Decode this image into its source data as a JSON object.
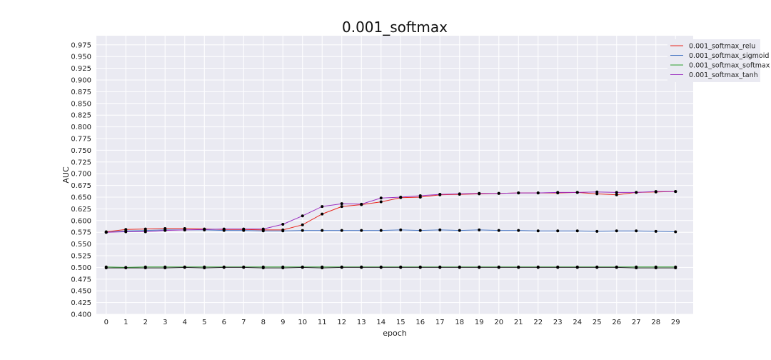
{
  "chart_data": {
    "type": "line",
    "title": "0.001_softmax",
    "xlabel": "epoch",
    "ylabel": "AUC",
    "x": [
      0,
      1,
      2,
      3,
      4,
      5,
      6,
      7,
      8,
      9,
      10,
      11,
      12,
      13,
      14,
      15,
      16,
      17,
      18,
      19,
      20,
      21,
      22,
      23,
      24,
      25,
      26,
      27,
      28,
      29
    ],
    "xlim": [
      -0.5,
      29.9
    ],
    "ylim": [
      0.4,
      0.9945
    ],
    "yticks": [
      "0.400",
      "0.425",
      "0.450",
      "0.475",
      "0.500",
      "0.525",
      "0.550",
      "0.575",
      "0.600",
      "0.625",
      "0.650",
      "0.675",
      "0.700",
      "0.725",
      "0.750",
      "0.775",
      "0.800",
      "0.825",
      "0.850",
      "0.875",
      "0.900",
      "0.925",
      "0.950",
      "0.975"
    ],
    "grid": true,
    "legend_position": "top-right",
    "series": [
      {
        "name": "0.001_softmax_relu",
        "color": "#e8281e",
        "values": [
          0.576,
          0.581,
          0.582,
          0.583,
          0.583,
          0.582,
          0.581,
          0.581,
          0.58,
          0.58,
          0.591,
          0.614,
          0.63,
          0.634,
          0.64,
          0.649,
          0.65,
          0.655,
          0.656,
          0.657,
          0.658,
          0.659,
          0.659,
          0.659,
          0.66,
          0.657,
          0.655,
          0.66,
          0.661,
          0.662
        ]
      },
      {
        "name": "0.001_softmax_sigmoid",
        "color": "#4a78c4",
        "values": [
          0.575,
          0.578,
          0.579,
          0.58,
          0.58,
          0.58,
          0.579,
          0.579,
          0.578,
          0.578,
          0.579,
          0.579,
          0.579,
          0.579,
          0.579,
          0.58,
          0.579,
          0.58,
          0.579,
          0.58,
          0.579,
          0.579,
          0.578,
          0.578,
          0.578,
          0.577,
          0.578,
          0.578,
          0.577,
          0.576
        ]
      },
      {
        "name": "0.001_softmax_softmax",
        "color": "#2ca02c",
        "values": [
          0.501,
          0.5,
          0.501,
          0.501,
          0.501,
          0.501,
          0.501,
          0.501,
          0.501,
          0.501,
          0.501,
          0.501,
          0.501,
          0.501,
          0.501,
          0.501,
          0.501,
          0.501,
          0.501,
          0.501,
          0.501,
          0.501,
          0.501,
          0.501,
          0.501,
          0.501,
          0.501,
          0.501,
          0.501,
          0.501
        ]
      },
      {
        "name": "0.001_softmax_tanh",
        "color": "#9b30c0",
        "values": [
          0.575,
          0.576,
          0.576,
          0.579,
          0.58,
          0.581,
          0.582,
          0.582,
          0.582,
          0.592,
          0.61,
          0.63,
          0.636,
          0.635,
          0.648,
          0.65,
          0.653,
          0.656,
          0.657,
          0.658,
          0.658,
          0.659,
          0.659,
          0.66,
          0.66,
          0.661,
          0.66,
          0.66,
          0.662,
          0.662
        ]
      },
      {
        "name": "",
        "color": "#333333",
        "values": [
          0.499,
          0.499,
          0.499,
          0.499,
          0.5,
          0.499,
          0.5,
          0.5,
          0.499,
          0.499,
          0.5,
          0.499,
          0.5,
          0.5,
          0.5,
          0.5,
          0.5,
          0.5,
          0.5,
          0.5,
          0.5,
          0.5,
          0.5,
          0.5,
          0.5,
          0.5,
          0.5,
          0.499,
          0.499,
          0.499
        ]
      }
    ]
  }
}
